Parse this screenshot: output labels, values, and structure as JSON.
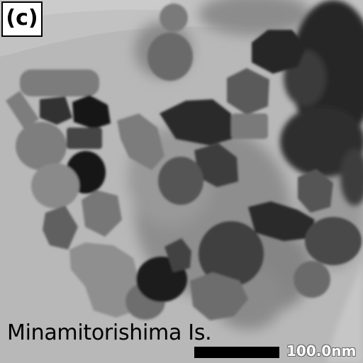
{
  "figure": {
    "panel_label": "(c)",
    "location_label": "Minamitorishima Is.",
    "scale_label": "100.0nm"
  }
}
